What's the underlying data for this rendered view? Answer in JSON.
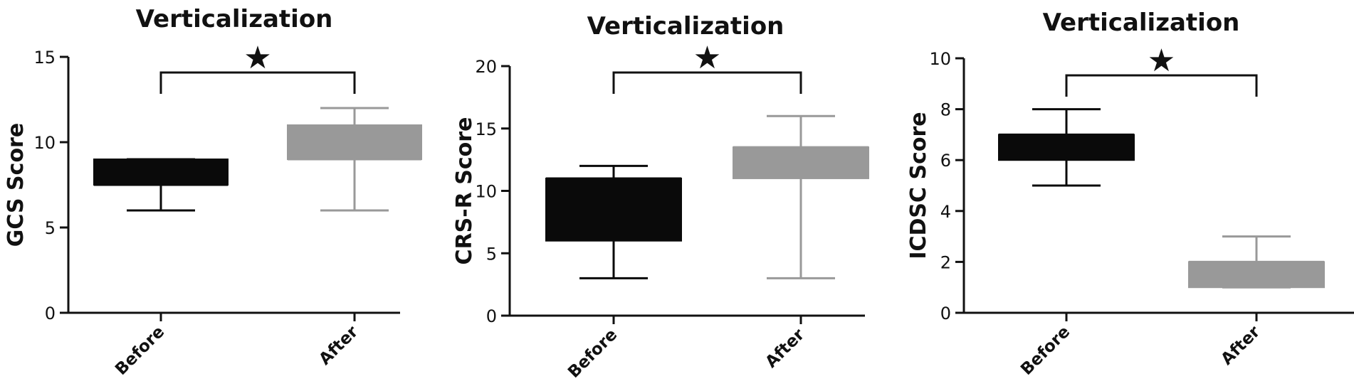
{
  "chart_data": [
    {
      "type": "box",
      "title": "Verticalization",
      "ylabel": "GCS Score",
      "xlabel": "",
      "categories": [
        "Before",
        "After"
      ],
      "ylim": [
        0,
        15
      ],
      "yticks": [
        "0",
        "5",
        "10",
        "15"
      ],
      "boxes": [
        {
          "category": "Before",
          "min": 6,
          "q1": 7.5,
          "median": 7.5,
          "q3": 9,
          "max": 9,
          "color": "#0a0a0a"
        },
        {
          "category": "After",
          "min": 6,
          "q1": 9,
          "median": 9,
          "q3": 11,
          "max": 12,
          "color": "#999999"
        }
      ],
      "significance": "★",
      "grid": false
    },
    {
      "type": "box",
      "title": "Verticalization",
      "ylabel": "CRS-R Score",
      "xlabel": "",
      "categories": [
        "Before",
        "After"
      ],
      "ylim": [
        0,
        20
      ],
      "yticks": [
        "0",
        "5",
        "10",
        "15",
        "20"
      ],
      "boxes": [
        {
          "category": "Before",
          "min": 3,
          "q1": 6,
          "median": 11,
          "q3": 11,
          "max": 12,
          "color": "#0a0a0a"
        },
        {
          "category": "After",
          "min": 3,
          "q1": 11,
          "median": 13.5,
          "q3": 13.5,
          "max": 16,
          "color": "#999999"
        }
      ],
      "significance": "★",
      "grid": false
    },
    {
      "type": "box",
      "title": "Verticalization",
      "ylabel": "ICDSC Score",
      "xlabel": "",
      "categories": [
        "Before",
        "After"
      ],
      "ylim": [
        0,
        10
      ],
      "yticks": [
        "0",
        "2",
        "4",
        "6",
        "8",
        "10"
      ],
      "boxes": [
        {
          "category": "Before",
          "min": 5,
          "q1": 6,
          "median": 7,
          "q3": 7,
          "max": 8,
          "color": "#0a0a0a"
        },
        {
          "category": "After",
          "min": 1,
          "q1": 1,
          "median": 2,
          "q3": 2,
          "max": 3,
          "color": "#999999"
        }
      ],
      "significance": "★",
      "grid": false
    }
  ]
}
